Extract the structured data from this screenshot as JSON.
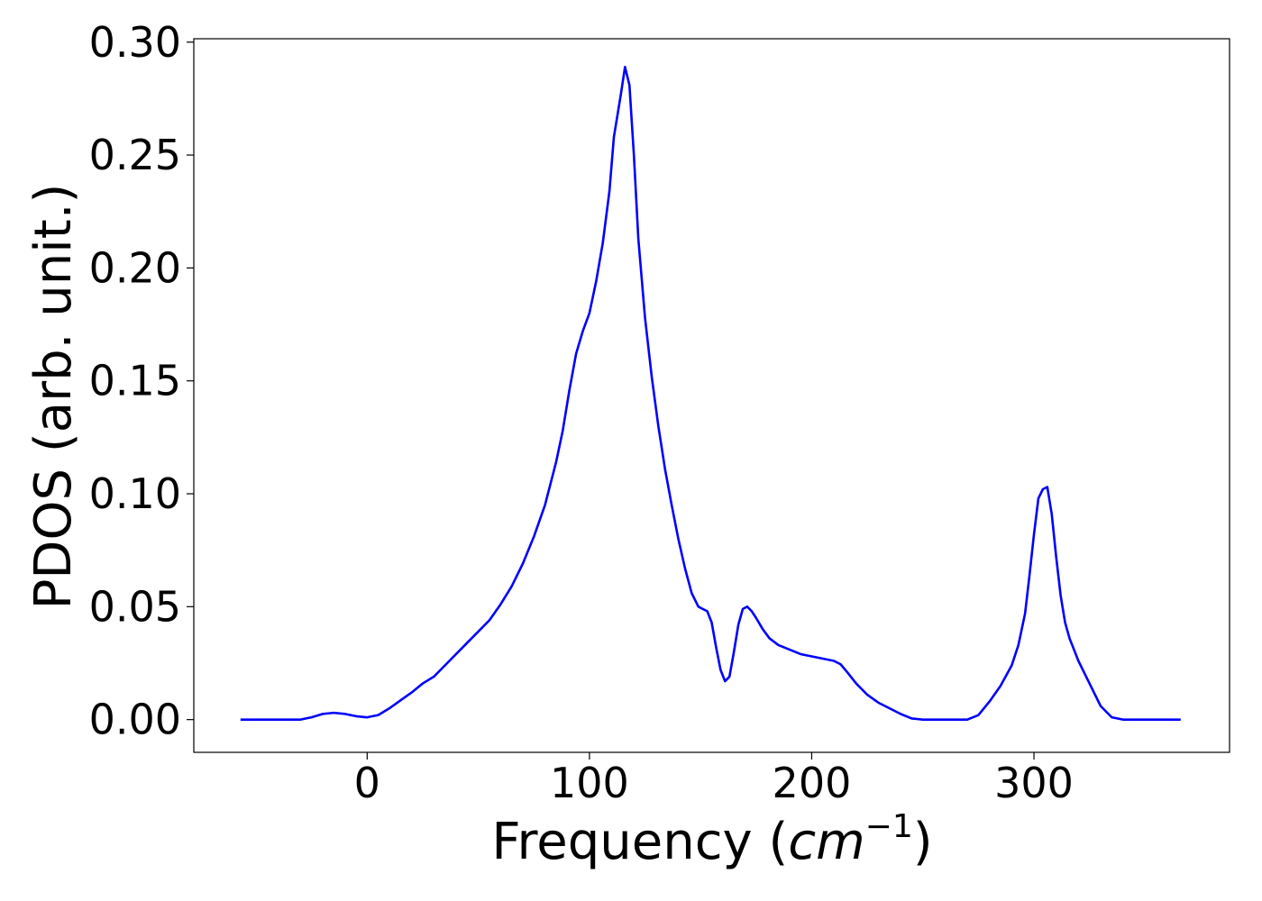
{
  "chart_data": {
    "type": "line",
    "xlabel_prefix": "Frequency (",
    "xlabel_unit": "cm",
    "xlabel_exp": "−1",
    "xlabel_suffix": ")",
    "ylabel": "PDOS (arb. unit.)",
    "xlim": [
      -78,
      388
    ],
    "ylim": [
      -0.0145,
      0.3015
    ],
    "xticks": [
      0,
      100,
      200,
      300
    ],
    "xtick_labels": [
      "0",
      "100",
      "200",
      "300"
    ],
    "yticks": [
      0.0,
      0.05,
      0.1,
      0.15,
      0.2,
      0.25,
      0.3
    ],
    "ytick_labels": [
      "0.00",
      "0.05",
      "0.10",
      "0.15",
      "0.20",
      "0.25",
      "0.30"
    ],
    "grid": false,
    "series": [
      {
        "color": "#0000ff",
        "x": [
          -57,
          -30,
          -25,
          -20,
          -15,
          -10,
          -5,
          0,
          5,
          10,
          15,
          20,
          25,
          30,
          35,
          40,
          45,
          50,
          55,
          60,
          65,
          70,
          75,
          80,
          85,
          88,
          91,
          94,
          97,
          100,
          103,
          106,
          109,
          111,
          114,
          116,
          118,
          120,
          122,
          125,
          128,
          131,
          134,
          137,
          140,
          143,
          146,
          149,
          151,
          153,
          155,
          157,
          159,
          161,
          163,
          165,
          167,
          169,
          171,
          173,
          175,
          178,
          181,
          185,
          190,
          195,
          200,
          205,
          210,
          213,
          216,
          220,
          225,
          230,
          235,
          240,
          245,
          250,
          255,
          260,
          265,
          270,
          275,
          280,
          285,
          290,
          293,
          296,
          298,
          300,
          302,
          304,
          306,
          308,
          310,
          312,
          314,
          316,
          318,
          320,
          325,
          330,
          335,
          340,
          345,
          350,
          366
        ],
        "y": [
          0.0,
          0.0,
          0.001,
          0.0025,
          0.003,
          0.0025,
          0.0015,
          0.001,
          0.002,
          0.005,
          0.0085,
          0.012,
          0.016,
          0.019,
          0.024,
          0.029,
          0.034,
          0.039,
          0.044,
          0.051,
          0.059,
          0.069,
          0.081,
          0.095,
          0.114,
          0.128,
          0.146,
          0.162,
          0.172,
          0.18,
          0.194,
          0.211,
          0.234,
          0.258,
          0.276,
          0.289,
          0.281,
          0.25,
          0.213,
          0.178,
          0.152,
          0.13,
          0.111,
          0.095,
          0.08,
          0.067,
          0.056,
          0.05,
          0.049,
          0.048,
          0.043,
          0.032,
          0.022,
          0.017,
          0.019,
          0.03,
          0.042,
          0.049,
          0.05,
          0.048,
          0.045,
          0.04,
          0.036,
          0.033,
          0.031,
          0.029,
          0.028,
          0.027,
          0.026,
          0.0245,
          0.021,
          0.016,
          0.011,
          0.0075,
          0.005,
          0.0025,
          0.0005,
          0.0,
          0.0,
          0.0,
          0.0,
          0.0,
          0.002,
          0.008,
          0.015,
          0.024,
          0.033,
          0.047,
          0.064,
          0.082,
          0.098,
          0.102,
          0.103,
          0.091,
          0.072,
          0.055,
          0.043,
          0.036,
          0.031,
          0.026,
          0.016,
          0.006,
          0.001,
          0.0,
          0.0,
          0.0,
          0.0
        ]
      }
    ]
  }
}
